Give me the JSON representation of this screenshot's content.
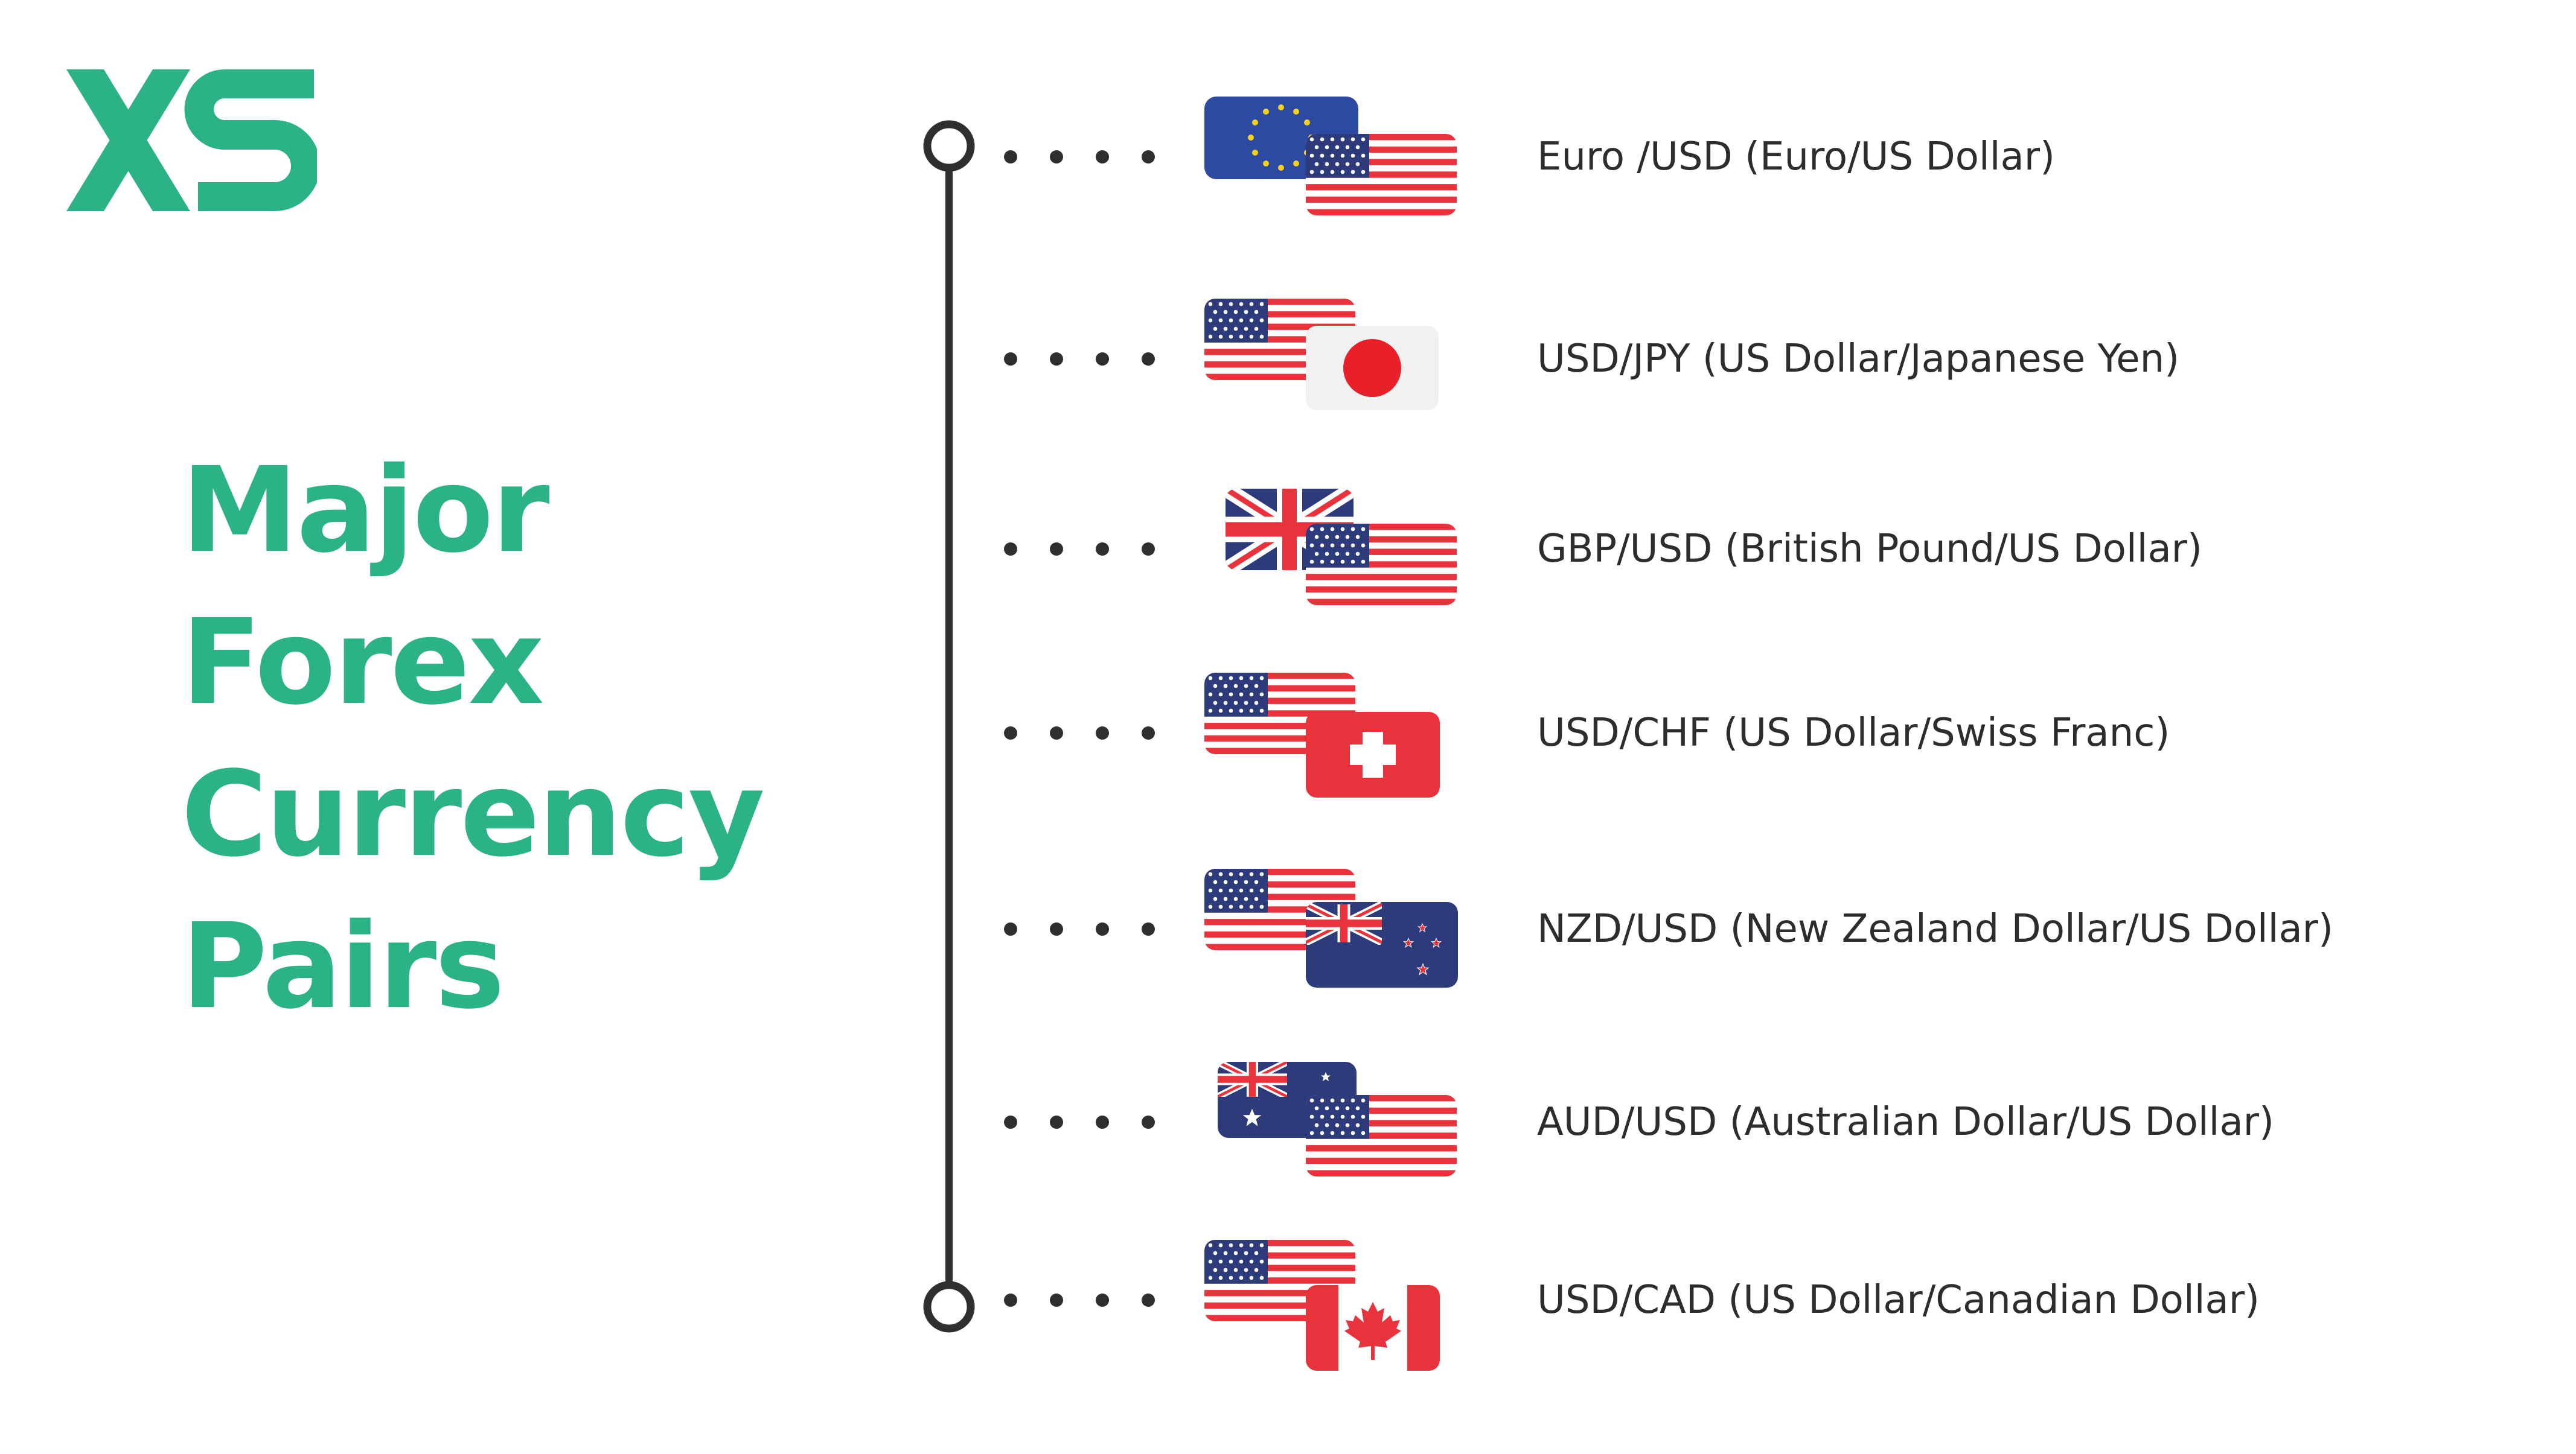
{
  "brand": {
    "name": "XS",
    "color": "#2bb383"
  },
  "title": {
    "lines": [
      "Major",
      "Forex",
      "Currency",
      "Pairs"
    ]
  },
  "pairs": [
    {
      "label": "Euro /USD (Euro/US Dollar)",
      "back_flag": "eu-flag-icon",
      "front_flag": "us-flag-icon"
    },
    {
      "label": "USD/JPY (US Dollar/Japanese Yen)",
      "back_flag": "us-flag-icon",
      "front_flag": "japan-flag-icon"
    },
    {
      "label": "GBP/USD (British Pound/US Dollar)",
      "back_flag": "uk-flag-icon",
      "front_flag": "us-flag-icon"
    },
    {
      "label": "USD/CHF (US Dollar/Swiss Franc)",
      "back_flag": "us-flag-icon",
      "front_flag": "switzerland-flag-icon"
    },
    {
      "label": "NZD/USD (New Zealand Dollar/US Dollar)",
      "back_flag": "us-flag-icon",
      "front_flag": "new-zealand-flag-icon"
    },
    {
      "label": "AUD/USD (Australian Dollar/US Dollar)",
      "back_flag": "australia-flag-icon",
      "front_flag": "us-flag-icon"
    },
    {
      "label": "USD/CAD (US Dollar/Canadian Dollar)",
      "back_flag": "us-flag-icon",
      "front_flag": "canada-flag-icon"
    }
  ]
}
